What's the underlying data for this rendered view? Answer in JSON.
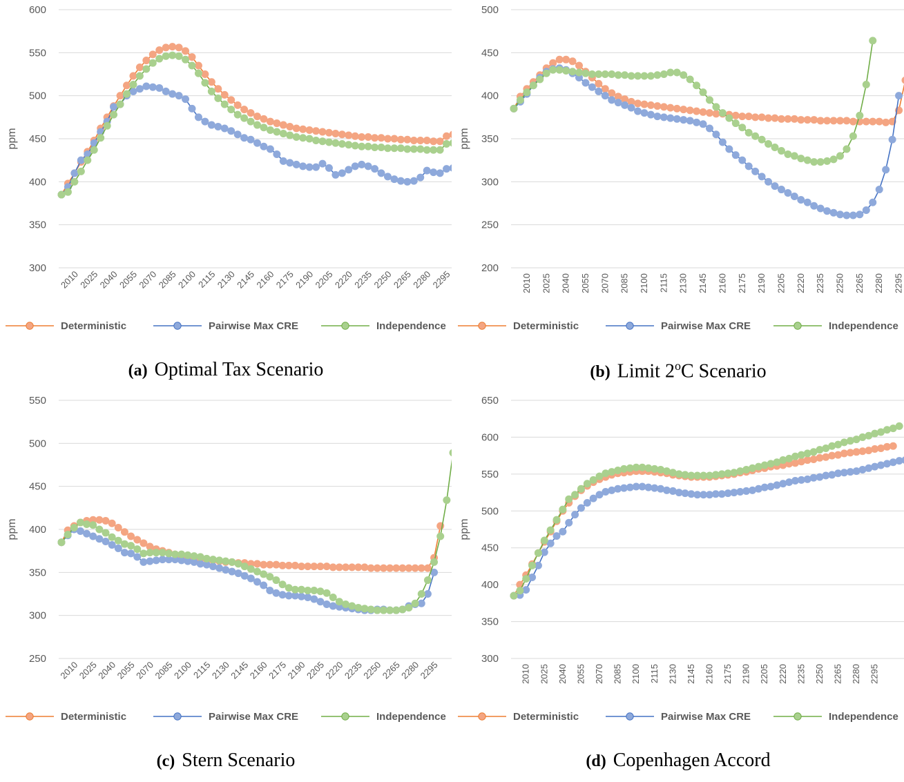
{
  "colors": {
    "Deterministic": "#F4A582",
    "Pairwise Max CRE": "#8EA9DB",
    "Independence": "#A9D08E",
    "Deterministic_line": "#ED7D31",
    "Pairwise Max CRE_line": "#4472C4",
    "Independence_line": "#70AD47"
  },
  "chart_data": [
    {
      "type": "line",
      "caption_letter": "(a)",
      "caption": "Optimal Tax Scenario",
      "ylabel": "ppm",
      "ylim": [
        300,
        600
      ],
      "ystep": 50,
      "x_tick_labels": [
        "2010",
        "2025",
        "2040",
        "2055",
        "2070",
        "2085",
        "2100",
        "2115",
        "2130",
        "2145",
        "2160",
        "2175",
        "2190",
        "2205",
        "2220",
        "2235",
        "2250",
        "2265",
        "2280",
        "2295"
      ],
      "x_tick_rotation": -45,
      "legend": [
        "Deterministic",
        "Pairwise Max CRE",
        "Independence"
      ],
      "series": [
        {
          "name": "Deterministic",
          "values": [
            385,
            398,
            410,
            423,
            435,
            448,
            462,
            475,
            488,
            500,
            512,
            523,
            533,
            541,
            548,
            553,
            556,
            557,
            556,
            552,
            545,
            535,
            525,
            516,
            508,
            501,
            495,
            489,
            484,
            480,
            476,
            473,
            470,
            468,
            466,
            464,
            462,
            461,
            460,
            459,
            458,
            457,
            456,
            455,
            454,
            453,
            452,
            452,
            451,
            451,
            450,
            450,
            449,
            449,
            448,
            448,
            448,
            447,
            447,
            453,
            455
          ]
        },
        {
          "name": "Pairwise Max CRE",
          "values": [
            385,
            394,
            410,
            425,
            432,
            445,
            458,
            470,
            487,
            490,
            500,
            505,
            508,
            511,
            510,
            509,
            505,
            502,
            500,
            496,
            485,
            475,
            470,
            466,
            464,
            462,
            459,
            455,
            451,
            449,
            445,
            441,
            438,
            432,
            424,
            422,
            420,
            418,
            417,
            417,
            421,
            416,
            408,
            410,
            414,
            418,
            420,
            418,
            415,
            410,
            406,
            403,
            401,
            400,
            401,
            405,
            413,
            411,
            410,
            415,
            416
          ]
        },
        {
          "name": "Independence",
          "values": [
            385,
            388,
            400,
            412,
            425,
            437,
            451,
            465,
            478,
            490,
            502,
            513,
            523,
            531,
            538,
            543,
            546,
            547,
            546,
            542,
            535,
            526,
            515,
            505,
            497,
            490,
            484,
            478,
            474,
            470,
            466,
            463,
            460,
            458,
            456,
            454,
            452,
            451,
            450,
            448,
            447,
            446,
            445,
            444,
            443,
            442,
            441,
            441,
            440,
            440,
            439,
            439,
            439,
            438,
            438,
            438,
            437,
            437,
            437,
            444,
            445
          ]
        }
      ]
    },
    {
      "type": "line",
      "caption_letter": "(b)",
      "caption": "Limit 2",
      "caption_sup": "o",
      "caption_tail": "C Scenario",
      "ylabel": "ppm",
      "ylim": [
        200,
        500
      ],
      "ystep": 50,
      "x_tick_labels": [
        "2010",
        "2025",
        "2040",
        "2055",
        "2070",
        "2085",
        "2100",
        "2115",
        "2130",
        "2145",
        "2160",
        "2175",
        "2190",
        "2205",
        "2220",
        "2235",
        "2250",
        "2265",
        "2280",
        "2295"
      ],
      "x_tick_rotation": -90,
      "legend": [
        "Deterministic",
        "Pairwise Max CRE",
        "Independence"
      ],
      "series": [
        {
          "name": "Deterministic",
          "values": [
            385,
            399,
            408,
            416,
            424,
            432,
            438,
            442,
            442,
            440,
            435,
            428,
            421,
            414,
            408,
            403,
            399,
            396,
            393,
            391,
            390,
            389,
            388,
            387,
            386,
            385,
            384,
            383,
            382,
            381,
            380,
            379,
            379,
            378,
            377,
            376,
            376,
            375,
            375,
            374,
            374,
            373,
            373,
            373,
            372,
            372,
            372,
            371,
            371,
            371,
            371,
            371,
            370,
            370,
            370,
            370,
            370,
            369,
            370,
            383,
            418
          ]
        },
        {
          "name": "Pairwise Max CRE",
          "values": [
            385,
            393,
            402,
            412,
            421,
            428,
            431,
            432,
            430,
            426,
            421,
            415,
            410,
            405,
            400,
            395,
            392,
            389,
            386,
            382,
            380,
            378,
            376,
            375,
            374,
            373,
            372,
            371,
            369,
            367,
            362,
            355,
            346,
            338,
            331,
            325,
            318,
            312,
            306,
            300,
            295,
            291,
            287,
            283,
            279,
            276,
            272,
            269,
            266,
            264,
            262,
            261,
            261,
            262,
            267,
            276,
            291,
            314,
            349,
            400
          ]
        },
        {
          "name": "Independence",
          "values": [
            385,
            395,
            404,
            412,
            419,
            426,
            430,
            430,
            429,
            428,
            427,
            426,
            425,
            425,
            425,
            425,
            424,
            424,
            423,
            423,
            423,
            423,
            424,
            425,
            427,
            427,
            424,
            419,
            412,
            404,
            395,
            387,
            380,
            374,
            368,
            363,
            357,
            353,
            349,
            344,
            340,
            336,
            332,
            330,
            327,
            325,
            323,
            323,
            324,
            326,
            330,
            338,
            353,
            377,
            413,
            464
          ]
        }
      ]
    },
    {
      "type": "line",
      "caption_letter": "(c)",
      "caption": "Stern Scenario",
      "ylabel": "ppm",
      "ylim": [
        250,
        550
      ],
      "ystep": 50,
      "x_tick_labels": [
        "2010",
        "2025",
        "2040",
        "2055",
        "2070",
        "2085",
        "2100",
        "2115",
        "2130",
        "2145",
        "2160",
        "2175",
        "2190",
        "2205",
        "2220",
        "2235",
        "2250",
        "2265",
        "2280",
        "2295"
      ],
      "x_tick_rotation": -45,
      "legend": [
        "Deterministic",
        "Pairwise Max CRE",
        "Independence"
      ],
      "series": [
        {
          "name": "Deterministic",
          "values": [
            385,
            399,
            404,
            408,
            410,
            411,
            411,
            410,
            407,
            402,
            397,
            392,
            388,
            384,
            380,
            377,
            375,
            373,
            371,
            369,
            368,
            367,
            366,
            365,
            364,
            363,
            362,
            362,
            361,
            361,
            360,
            360,
            359,
            359,
            359,
            358,
            358,
            358,
            357,
            357,
            357,
            357,
            357,
            356,
            356,
            356,
            356,
            356,
            356,
            355,
            355,
            355,
            355,
            355,
            355,
            355,
            355,
            355,
            355,
            367,
            404
          ]
        },
        {
          "name": "Pairwise Max CRE",
          "values": [
            385,
            393,
            400,
            398,
            395,
            392,
            389,
            386,
            382,
            378,
            373,
            372,
            368,
            362,
            363,
            364,
            365,
            365,
            365,
            364,
            363,
            362,
            360,
            359,
            357,
            355,
            353,
            351,
            349,
            346,
            343,
            339,
            335,
            329,
            326,
            324,
            323,
            323,
            322,
            321,
            319,
            316,
            313,
            311,
            310,
            309,
            308,
            307,
            306,
            306,
            307,
            307,
            306,
            306,
            307,
            311,
            313,
            314,
            325,
            350
          ]
        },
        {
          "name": "Independence",
          "values": [
            385,
            394,
            402,
            408,
            406,
            405,
            400,
            396,
            391,
            387,
            383,
            381,
            377,
            372,
            373,
            373,
            373,
            372,
            371,
            371,
            370,
            369,
            368,
            366,
            365,
            364,
            363,
            362,
            360,
            357,
            354,
            351,
            348,
            345,
            341,
            336,
            332,
            330,
            330,
            329,
            329,
            328,
            326,
            321,
            316,
            313,
            311,
            309,
            308,
            307,
            306,
            306,
            306,
            306,
            307,
            309,
            314,
            325,
            341,
            362,
            392,
            434,
            489
          ]
        }
      ]
    },
    {
      "type": "line",
      "caption_letter": "(d)",
      "caption": "Copenhagen Accord",
      "ylabel": "ppm",
      "ylim": [
        300,
        650
      ],
      "ystep": 50,
      "x_tick_labels": [
        "2010",
        "2025",
        "2040",
        "2055",
        "2070",
        "2085",
        "2100",
        "2115",
        "2130",
        "2145",
        "2160",
        "2175",
        "2190",
        "2205",
        "2220",
        "2235",
        "2250",
        "2265",
        "2280",
        "2295"
      ],
      "x_tick_rotation": -90,
      "legend": [
        "Deterministic",
        "Pairwise Max CRE",
        "Independence"
      ],
      "series": [
        {
          "name": "Deterministic",
          "values": [
            385,
            400,
            413,
            428,
            443,
            458,
            472,
            486,
            500,
            511,
            520,
            528,
            534,
            539,
            543,
            546,
            549,
            551,
            552,
            553,
            554,
            554,
            554,
            553,
            552,
            551,
            549,
            548,
            547,
            546,
            546,
            546,
            546,
            547,
            548,
            549,
            550,
            552,
            553,
            555,
            557,
            558,
            560,
            561,
            562,
            564,
            565,
            567,
            569,
            570,
            572,
            573,
            575,
            576,
            578,
            579,
            580,
            581,
            582,
            584,
            585,
            587,
            588
          ]
        },
        {
          "name": "Pairwise Max CRE",
          "values": [
            385,
            386,
            393,
            410,
            426,
            444,
            456,
            466,
            472,
            484,
            495,
            504,
            511,
            517,
            522,
            526,
            528,
            530,
            531,
            532,
            533,
            533,
            532,
            531,
            530,
            528,
            527,
            525,
            524,
            523,
            522,
            522,
            522,
            523,
            523,
            524,
            525,
            526,
            527,
            528,
            530,
            532,
            533,
            535,
            537,
            539,
            541,
            542,
            543,
            545,
            546,
            548,
            549,
            551,
            552,
            553,
            554,
            556,
            558,
            560,
            562,
            564,
            566,
            568,
            569
          ]
        },
        {
          "name": "Independence",
          "values": [
            385,
            392,
            408,
            426,
            443,
            460,
            474,
            488,
            502,
            516,
            522,
            530,
            537,
            542,
            547,
            551,
            553,
            555,
            557,
            558,
            559,
            559,
            558,
            557,
            556,
            554,
            552,
            550,
            549,
            548,
            548,
            548,
            548,
            549,
            550,
            551,
            552,
            554,
            556,
            558,
            560,
            562,
            564,
            566,
            569,
            571,
            574,
            576,
            578,
            580,
            583,
            585,
            588,
            590,
            593,
            595,
            597,
            600,
            602,
            605,
            607,
            610,
            612,
            615
          ]
        }
      ]
    }
  ]
}
